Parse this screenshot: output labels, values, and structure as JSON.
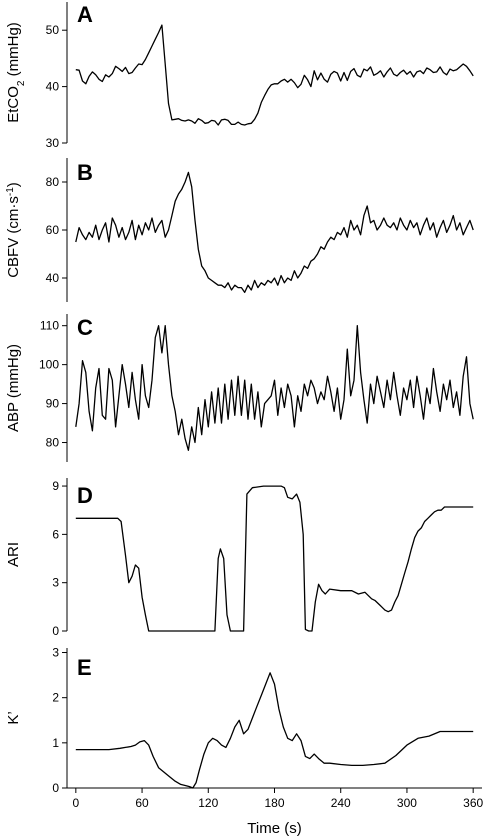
{
  "chart_data": [
    {
      "type": "line",
      "panel_label": "A",
      "ylabel": "EtCO₂ (mmHg)",
      "ylim": [
        30,
        55
      ],
      "yticks": [
        30,
        40,
        50
      ],
      "x": [
        0,
        3,
        6,
        9,
        12,
        15,
        18,
        21,
        24,
        27,
        30,
        33,
        36,
        39,
        42,
        45,
        48,
        51,
        54,
        57,
        60,
        63,
        66,
        69,
        72,
        75,
        78,
        81,
        84,
        87,
        90,
        93,
        96,
        99,
        102,
        105,
        108,
        111,
        114,
        117,
        120,
        123,
        126,
        129,
        132,
        135,
        138,
        141,
        144,
        147,
        150,
        153,
        156,
        159,
        162,
        165,
        168,
        171,
        174,
        177,
        180,
        183,
        186,
        189,
        192,
        195,
        198,
        201,
        204,
        207,
        210,
        213,
        216,
        219,
        222,
        225,
        228,
        231,
        234,
        237,
        240,
        243,
        246,
        249,
        252,
        255,
        258,
        261,
        264,
        267,
        270,
        273,
        276,
        279,
        282,
        285,
        288,
        291,
        294,
        297,
        300,
        303,
        306,
        309,
        312,
        315,
        318,
        321,
        324,
        327,
        330,
        333,
        336,
        339,
        342,
        345,
        348,
        351,
        354,
        357,
        360
      ],
      "y": [
        43.0,
        42.9,
        41.0,
        40.5,
        41.8,
        42.6,
        42.1,
        41.3,
        40.9,
        42.1,
        41.7,
        42.3,
        43.6,
        43.2,
        42.7,
        43.4,
        42.3,
        42.5,
        43.3,
        44.0,
        43.9,
        44.8,
        46.0,
        47.2,
        48.4,
        49.6,
        50.9,
        44.0,
        37.0,
        34.1,
        34.2,
        34.3,
        34.0,
        33.9,
        34.1,
        33.9,
        33.5,
        34.3,
        34.0,
        33.5,
        33.6,
        34.0,
        33.9,
        33.2,
        34.1,
        34.2,
        34.0,
        33.3,
        33.3,
        33.7,
        33.3,
        33.2,
        33.4,
        33.5,
        34.2,
        35.3,
        37.2,
        38.4,
        39.5,
        40.3,
        40.5,
        40.5,
        41.0,
        41.3,
        40.8,
        41.3,
        40.7,
        39.8,
        40.4,
        42.0,
        41.2,
        40.0,
        42.8,
        41.2,
        42.4,
        41.3,
        40.8,
        42.2,
        42.7,
        42.4,
        41.0,
        42.5,
        41.1,
        42.7,
        43.2,
        42.0,
        41.7,
        43.1,
        42.8,
        43.5,
        42.0,
        42.3,
        42.8,
        41.7,
        42.6,
        43.3,
        42.2,
        41.9,
        42.5,
        42.9,
        42.2,
        42.7,
        41.7,
        42.6,
        42.8,
        42.3,
        43.3,
        43.0,
        42.5,
        42.6,
        43.5,
        42.5,
        42.1,
        43.1,
        42.8,
        43.0,
        43.5,
        44.0,
        43.6,
        42.8,
        41.9
      ]
    },
    {
      "type": "line",
      "panel_label": "B",
      "ylabel": "CBFV (cm·s⁻¹)",
      "ylim": [
        30,
        90
      ],
      "yticks": [
        40,
        60,
        80
      ],
      "x": [
        0,
        3,
        6,
        9,
        12,
        15,
        18,
        21,
        24,
        27,
        30,
        33,
        36,
        39,
        42,
        45,
        48,
        51,
        54,
        57,
        60,
        63,
        66,
        69,
        72,
        75,
        78,
        81,
        84,
        87,
        90,
        93,
        96,
        99,
        102,
        105,
        108,
        111,
        114,
        117,
        120,
        123,
        126,
        129,
        132,
        135,
        138,
        141,
        144,
        147,
        150,
        153,
        156,
        159,
        162,
        165,
        168,
        171,
        174,
        177,
        180,
        183,
        186,
        189,
        192,
        195,
        198,
        201,
        204,
        207,
        210,
        213,
        216,
        219,
        222,
        225,
        228,
        231,
        234,
        237,
        240,
        243,
        246,
        249,
        252,
        255,
        258,
        261,
        264,
        267,
        270,
        273,
        276,
        279,
        282,
        285,
        288,
        291,
        294,
        297,
        300,
        303,
        306,
        309,
        312,
        315,
        318,
        321,
        324,
        327,
        330,
        333,
        336,
        339,
        342,
        345,
        348,
        351,
        354,
        357,
        360
      ],
      "y": [
        55,
        61,
        58,
        56,
        59,
        57,
        62,
        56,
        60,
        63,
        55,
        65,
        62,
        57,
        61,
        56,
        59,
        64,
        56,
        62,
        58,
        63,
        60,
        65,
        59,
        62,
        64,
        57,
        60,
        66,
        72,
        75,
        77,
        80,
        84,
        78,
        64,
        52,
        45,
        43,
        40,
        39,
        38,
        37,
        37,
        36,
        38,
        35,
        37,
        36,
        36,
        34,
        37,
        35,
        39,
        36,
        38,
        37,
        39,
        38,
        40,
        37,
        41,
        38,
        40,
        39,
        43,
        40,
        42,
        45,
        44,
        47,
        48,
        50,
        53,
        52,
        55,
        57,
        56,
        59,
        58,
        61,
        57,
        64,
        60,
        62,
        58,
        66,
        70,
        63,
        64,
        60,
        62,
        65,
        62,
        61,
        63,
        60,
        65,
        62,
        60,
        64,
        61,
        63,
        58,
        62,
        65,
        60,
        63,
        57,
        61,
        64,
        59,
        62,
        66,
        60,
        63,
        58,
        61,
        64,
        60
      ]
    },
    {
      "type": "line",
      "panel_label": "C",
      "ylabel": "ABP (mmHg)",
      "ylim": [
        75,
        113
      ],
      "yticks": [
        80,
        90,
        100,
        110
      ],
      "x": [
        0,
        3,
        6,
        9,
        12,
        15,
        18,
        21,
        24,
        27,
        30,
        33,
        36,
        39,
        42,
        45,
        48,
        51,
        54,
        57,
        60,
        63,
        66,
        69,
        72,
        75,
        78,
        81,
        84,
        87,
        90,
        93,
        96,
        99,
        102,
        105,
        108,
        111,
        114,
        117,
        120,
        123,
        126,
        129,
        132,
        135,
        138,
        141,
        144,
        147,
        150,
        153,
        156,
        159,
        162,
        165,
        168,
        171,
        174,
        177,
        180,
        183,
        186,
        189,
        192,
        195,
        198,
        201,
        204,
        207,
        210,
        213,
        216,
        219,
        222,
        225,
        228,
        231,
        234,
        237,
        240,
        243,
        246,
        249,
        252,
        255,
        258,
        261,
        264,
        267,
        270,
        273,
        276,
        279,
        282,
        285,
        288,
        291,
        294,
        297,
        300,
        303,
        306,
        309,
        312,
        315,
        318,
        321,
        324,
        327,
        330,
        333,
        336,
        339,
        342,
        345,
        348,
        351,
        354,
        357,
        360
      ],
      "y": [
        84,
        90,
        101,
        98,
        88,
        83,
        94,
        99,
        87,
        86,
        99,
        96,
        84,
        92,
        100,
        95,
        89,
        98,
        91,
        86,
        100,
        92,
        89,
        96,
        107,
        110,
        103,
        110,
        100,
        92,
        88,
        82,
        86,
        81,
        78,
        84,
        80,
        89,
        82,
        91,
        84,
        93,
        85,
        94,
        85,
        95,
        86,
        96,
        87,
        97,
        87,
        96,
        86,
        95,
        86,
        93,
        84,
        90,
        91,
        92,
        96,
        87,
        94,
        89,
        95,
        92,
        84,
        92,
        88,
        95,
        92,
        96,
        94,
        90,
        93,
        91,
        97,
        93,
        88,
        94,
        86,
        91,
        104,
        92,
        96,
        110,
        98,
        91,
        85,
        95,
        90,
        97,
        93,
        89,
        96,
        91,
        98,
        92,
        87,
        94,
        91,
        96,
        89,
        97,
        92,
        86,
        94,
        90,
        99,
        93,
        88,
        95,
        91,
        96,
        89,
        93,
        87,
        97,
        102,
        90,
        86
      ]
    },
    {
      "type": "line",
      "panel_label": "D",
      "ylabel": "ARI",
      "ylim": [
        0,
        9.5
      ],
      "yticks": [
        0,
        3.0,
        6.0,
        9.0
      ],
      "x": [
        0,
        10,
        20,
        30,
        38,
        41,
        45,
        48,
        51,
        54,
        57,
        60,
        63,
        66,
        69,
        72,
        80,
        100,
        120,
        126,
        129,
        131,
        134,
        137,
        140,
        143,
        146,
        149,
        152,
        155,
        160,
        170,
        180,
        186,
        189,
        192,
        196,
        200,
        203,
        206,
        208,
        211,
        214,
        217,
        220,
        223,
        226,
        230,
        240,
        250,
        256,
        262,
        265,
        268,
        271,
        274,
        277,
        280,
        283,
        286,
        289,
        292,
        295,
        298,
        301,
        304,
        307,
        310,
        313,
        316,
        319,
        322,
        325,
        328,
        331,
        334,
        337,
        340,
        350,
        360
      ],
      "y": [
        7.0,
        7.0,
        7.0,
        7.0,
        7.0,
        6.8,
        4.7,
        3.0,
        3.4,
        4.1,
        3.9,
        2.1,
        1.0,
        0.0,
        0.0,
        0.0,
        0.0,
        0.0,
        0.0,
        0.0,
        4.5,
        5.1,
        4.5,
        1.0,
        0.0,
        0.0,
        0.0,
        0.0,
        0.0,
        8.5,
        8.9,
        9.0,
        9.0,
        9.0,
        8.9,
        8.3,
        8.2,
        8.5,
        8.0,
        6.0,
        0.1,
        0.0,
        0.0,
        1.8,
        2.9,
        2.5,
        2.3,
        2.6,
        2.5,
        2.5,
        2.3,
        2.4,
        2.2,
        2.0,
        1.9,
        1.7,
        1.5,
        1.3,
        1.2,
        1.3,
        1.8,
        2.2,
        2.9,
        3.6,
        4.3,
        5.1,
        5.8,
        6.2,
        6.4,
        6.8,
        7.0,
        7.2,
        7.4,
        7.5,
        7.5,
        7.7,
        7.7,
        7.7,
        7.7,
        7.7
      ]
    },
    {
      "type": "line",
      "panel_label": "E",
      "xlabel": "Time (s)",
      "ylabel": "K’",
      "ylim": [
        0,
        3.1
      ],
      "yticks": [
        0,
        1.0,
        2.0,
        3.0
      ],
      "xlim": [
        -8,
        368
      ],
      "xticks": [
        0,
        60,
        120,
        180,
        240,
        300,
        360
      ],
      "x": [
        0,
        10,
        20,
        30,
        40,
        45,
        50,
        54,
        58,
        62,
        66,
        70,
        75,
        80,
        85,
        90,
        95,
        100,
        103,
        106,
        109,
        112,
        116,
        120,
        124,
        128,
        132,
        136,
        140,
        144,
        148,
        152,
        156,
        160,
        164,
        168,
        172,
        176,
        180,
        184,
        188,
        192,
        196,
        200,
        204,
        208,
        212,
        216,
        220,
        225,
        230,
        240,
        250,
        260,
        270,
        280,
        290,
        300,
        310,
        320,
        330,
        340,
        350,
        360
      ],
      "y": [
        0.85,
        0.85,
        0.85,
        0.85,
        0.88,
        0.9,
        0.92,
        0.95,
        1.02,
        1.05,
        0.95,
        0.7,
        0.45,
        0.35,
        0.25,
        0.15,
        0.08,
        0.05,
        0.03,
        0.0,
        0.12,
        0.4,
        0.75,
        1.0,
        1.1,
        1.05,
        0.95,
        0.9,
        1.1,
        1.35,
        1.5,
        1.2,
        1.3,
        1.55,
        1.8,
        2.05,
        2.3,
        2.55,
        2.3,
        1.75,
        1.35,
        1.1,
        1.05,
        1.2,
        1.05,
        0.7,
        0.65,
        0.75,
        0.65,
        0.55,
        0.55,
        0.52,
        0.5,
        0.5,
        0.52,
        0.55,
        0.72,
        0.95,
        1.1,
        1.15,
        1.25,
        1.25,
        1.25,
        1.25
      ]
    }
  ]
}
